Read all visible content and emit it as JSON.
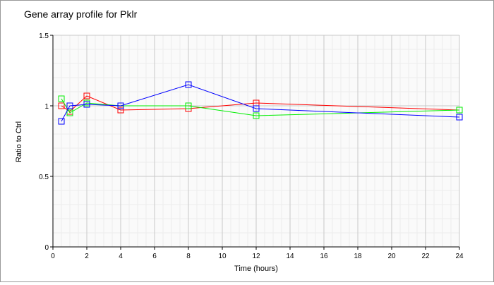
{
  "chart_data": {
    "type": "line",
    "title": "Gene array profile for Pklr",
    "xlabel": "Time (hours)",
    "ylabel": "Ratio to Ctrl",
    "xlim": [
      0,
      24
    ],
    "ylim": [
      0,
      1.5
    ],
    "xticks": [
      0,
      2,
      4,
      6,
      8,
      10,
      12,
      14,
      16,
      18,
      20,
      22,
      24
    ],
    "yticks": [
      0,
      0.5,
      1,
      1.5
    ],
    "ytick_labels": [
      "0",
      "0.5",
      "1",
      "1.5"
    ],
    "grid": true,
    "x": [
      0.5,
      1,
      2,
      4,
      8,
      12,
      24
    ],
    "series": [
      {
        "color": "#ff0000",
        "values": [
          1.0,
          0.96,
          1.07,
          0.97,
          0.98,
          1.02,
          0.97
        ]
      },
      {
        "color": "#00ee00",
        "values": [
          1.05,
          0.95,
          1.02,
          1.0,
          1.0,
          0.93,
          0.97
        ]
      },
      {
        "color": "#0000ff",
        "values": [
          0.89,
          1.0,
          1.01,
          1.0,
          1.15,
          0.98,
          0.92
        ]
      }
    ],
    "marker": "square"
  }
}
